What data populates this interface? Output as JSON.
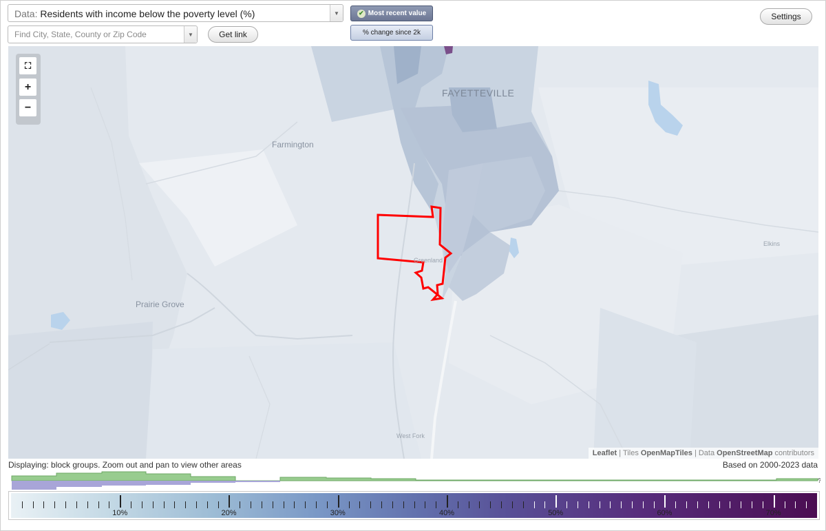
{
  "data_select": {
    "prefix": "Data:",
    "value": "Residents with income below the poverty level (%)"
  },
  "search": {
    "placeholder": "Find City, State, County or Zip Code"
  },
  "buttons": {
    "get_link": "Get link",
    "settings": "Settings"
  },
  "mode_toggle": {
    "most_recent": "Most recent value",
    "pct_change": "% change since 2k",
    "selected": "Most recent value"
  },
  "map": {
    "labels": {
      "fayetteville": "FAYETTEVILLE",
      "farmington": "Farmington",
      "prairie_grove": "Prairie Grove",
      "greenland": "Greenland",
      "elkins": "Elkins",
      "west_fork": "West Fork"
    },
    "zoom_controls": {
      "fullscreen": "⛶",
      "zoom_in": "+",
      "zoom_out": "−"
    },
    "attribution": {
      "leaflet": "Leaflet",
      "tiles_prefix": "| Tiles",
      "tiles": "OpenMapTiles",
      "data_prefix": "| Data",
      "data": "OpenStreetMap",
      "suffix": "contributors"
    },
    "highlight_color": "#ff0000"
  },
  "status": {
    "displaying": "Displaying: block groups. Zoom out and pan to view other areas",
    "based_on": "Based on 2000-2023 data"
  },
  "histogram": {
    "unknown_marker": "?"
  },
  "legend": {
    "tick_labels": [
      "10%",
      "20%",
      "30%",
      "40%",
      "50%",
      "60%",
      "70%"
    ],
    "scale_max_percent": 74
  }
}
